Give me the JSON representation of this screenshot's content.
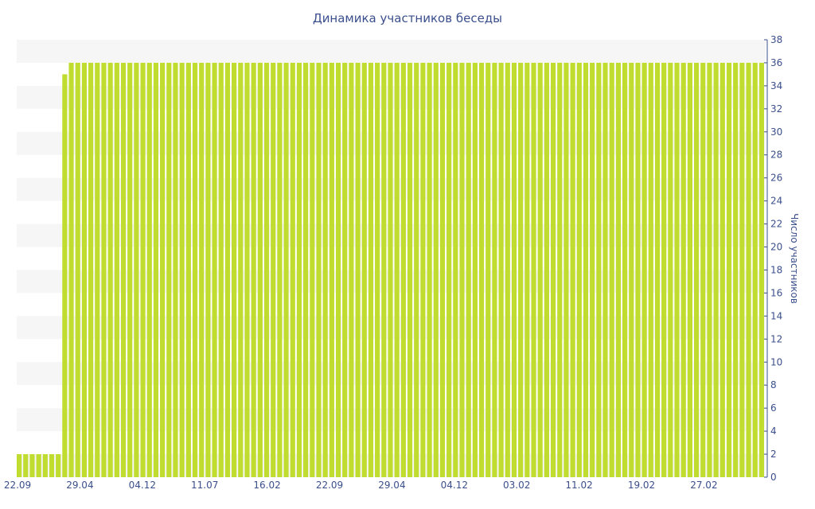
{
  "chart_data": {
    "type": "bar",
    "title": "Динамика участников беседы",
    "ylabel": "Число участников",
    "xlabel": "",
    "ylim": [
      0,
      38
    ],
    "y_ticks": [
      0,
      2,
      4,
      6,
      8,
      10,
      12,
      14,
      16,
      18,
      20,
      22,
      24,
      26,
      28,
      30,
      32,
      34,
      36,
      38
    ],
    "y_axis_side": "right",
    "grid": "alternating horizontal bands",
    "x_tick_labels": [
      "22.09",
      "29.04",
      "04.12",
      "11.07",
      "16.02",
      "22.09",
      "29.04",
      "04.12",
      "03.02",
      "11.02",
      "19.02",
      "27.02"
    ],
    "bar_count": 115,
    "values": [
      2,
      2,
      2,
      2,
      2,
      2,
      2,
      35,
      36,
      36,
      36,
      36,
      36,
      36,
      36,
      36,
      36,
      36,
      36,
      36,
      36,
      36,
      36,
      36,
      36,
      36,
      36,
      36,
      36,
      36,
      36,
      36,
      36,
      36,
      36,
      36,
      36,
      36,
      36,
      36,
      36,
      36,
      36,
      36,
      36,
      36,
      36,
      36,
      36,
      36,
      36,
      36,
      36,
      36,
      36,
      36,
      36,
      36,
      36,
      36,
      36,
      36,
      36,
      36,
      36,
      36,
      36,
      36,
      36,
      36,
      36,
      36,
      36,
      36,
      36,
      36,
      36,
      36,
      36,
      36,
      36,
      36,
      36,
      36,
      36,
      36,
      36,
      36,
      36,
      36,
      36,
      36,
      36,
      36,
      36,
      36,
      36,
      36,
      36,
      36,
      36,
      36,
      36,
      36,
      36,
      36,
      36,
      36,
      36,
      36,
      36,
      36,
      36,
      36,
      36
    ],
    "colors": {
      "bar": "#bfdc2f",
      "band": "#f6f6f6",
      "text": "#3a4f8c"
    }
  }
}
